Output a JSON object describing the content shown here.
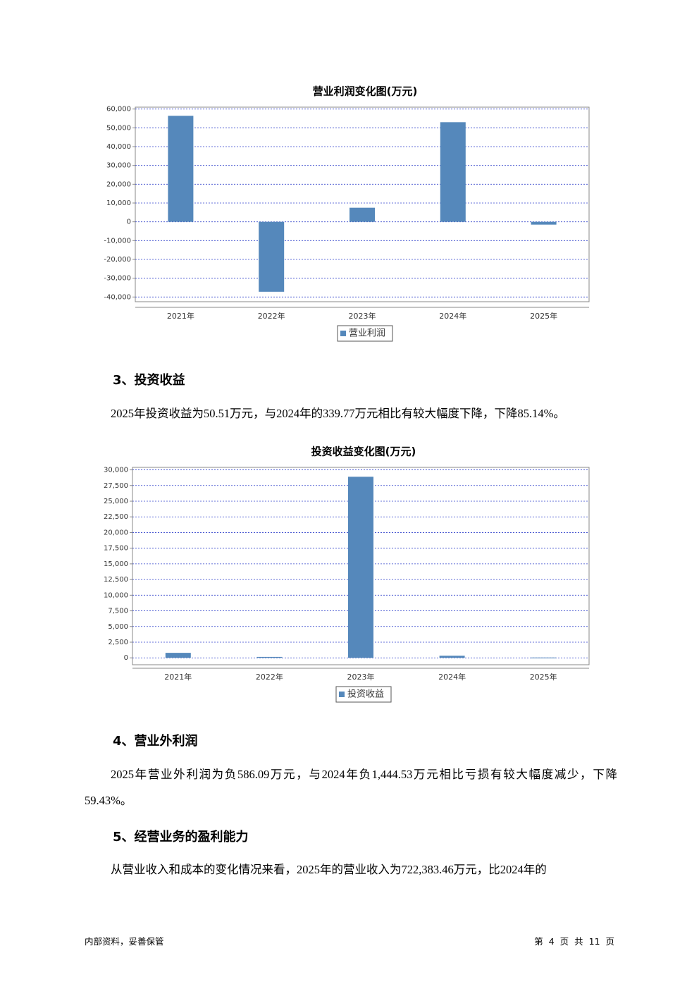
{
  "chart_data": [
    {
      "type": "bar",
      "title": "营业利润变化图(万元)",
      "categories": [
        "2021年",
        "2022年",
        "2023年",
        "2024年",
        "2025年"
      ],
      "series": [
        {
          "name": "营业利润",
          "color": "#5588bb",
          "values": [
            56400,
            -37200,
            7500,
            53000,
            -1500
          ]
        }
      ],
      "ylim": [
        -42500,
        61000
      ],
      "yticks": [
        {
          "value": 60000,
          "label": "60,000"
        },
        {
          "value": 50000,
          "label": "50,000"
        },
        {
          "value": 40000,
          "label": "40,000"
        },
        {
          "value": 30000,
          "label": "30,000"
        },
        {
          "value": 20000,
          "label": "20,000"
        },
        {
          "value": 10000,
          "label": "10,000"
        },
        0,
        {
          "value": -10000,
          "label": "-10,000"
        },
        {
          "value": -20000,
          "label": "-20,000"
        },
        {
          "value": -30000,
          "label": "-30,000"
        },
        {
          "value": -40000,
          "label": "-40,000"
        }
      ],
      "grid": true,
      "legend": "bottom"
    },
    {
      "type": "bar",
      "title": "投资收益变化图(万元)",
      "categories": [
        "2021年",
        "2022年",
        "2023年",
        "2024年",
        "2025年"
      ],
      "series": [
        {
          "name": "投资收益",
          "color": "#5588bb",
          "values": [
            800,
            150,
            28900,
            339.77,
            50.51
          ]
        }
      ],
      "ylim": [
        -1100,
        30400
      ],
      "yticks": [
        {
          "value": 30000,
          "label": "30,000"
        },
        {
          "value": 27500,
          "label": "27,500"
        },
        {
          "value": 25000,
          "label": "25,000"
        },
        {
          "value": 22500,
          "label": "22,500"
        },
        {
          "value": 20000,
          "label": "20,000"
        },
        {
          "value": 17500,
          "label": "17,500"
        },
        {
          "value": 15000,
          "label": "15,000"
        },
        {
          "value": 12500,
          "label": "12,500"
        },
        {
          "value": 10000,
          "label": "10,000"
        },
        {
          "value": 7500,
          "label": "7,500"
        },
        {
          "value": 5000,
          "label": "5,000"
        },
        {
          "value": 2500,
          "label": "2,500"
        },
        0
      ],
      "grid": true,
      "legend": "bottom"
    }
  ],
  "sections": [
    {
      "heading": "3、投资收益",
      "paragraph": "2025年投资收益为50.51万元，与2024年的339.77万元相比有较大幅度下降，下降85.14%。"
    },
    {
      "heading": "4、营业外利润",
      "paragraph": "2025年营业外利润为负586.09万元，与2024年负1,444.53万元相比亏损有较大幅度减少，下降59.43%。"
    },
    {
      "heading": "5、经营业务的盈利能力",
      "paragraph": "从营业收入和成本的变化情况来看，2025年的营业收入为722,383.46万元，比2024年的"
    }
  ],
  "footer": {
    "left": "内部资料，妥善保管",
    "right": "第 4 页 共 11 页"
  }
}
